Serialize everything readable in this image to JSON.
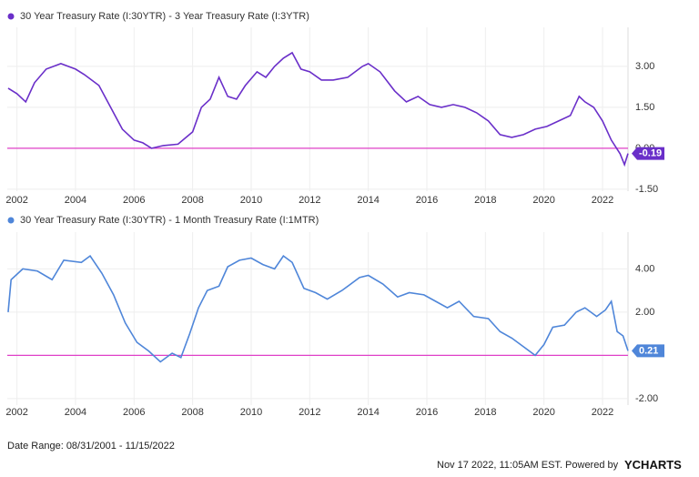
{
  "chart_data": [
    {
      "type": "line",
      "xlim": [
        2001.67,
        2022.87
      ],
      "xticks": [
        2002,
        2004,
        2006,
        2008,
        2010,
        2012,
        2014,
        2016,
        2018,
        2020,
        2022
      ],
      "ylim": [
        -1.57,
        4.43
      ],
      "yticks": [
        {
          "value": -1.5,
          "label": "-1.50"
        },
        {
          "value": 0,
          "label": "0.00"
        },
        {
          "value": 1.5,
          "label": "1.50"
        },
        {
          "value": 3,
          "label": "3.00"
        }
      ],
      "reference_line": 0,
      "reference_color": "#e040c8",
      "grid": true,
      "series": [
        {
          "name": "30 Year Treasury Rate (I:30YTR) - 3 Year Treasury Rate (I:3YTR)",
          "color": "#6a2fc9",
          "x": [
            2001.7,
            2002.0,
            2002.3,
            2002.6,
            2003.0,
            2003.5,
            2004.0,
            2004.3,
            2004.8,
            2005.2,
            2005.6,
            2006.0,
            2006.3,
            2006.6,
            2007.0,
            2007.5,
            2008.0,
            2008.3,
            2008.6,
            2008.9,
            2009.2,
            2009.5,
            2009.8,
            2010.2,
            2010.5,
            2010.8,
            2011.1,
            2011.4,
            2011.7,
            2012.0,
            2012.4,
            2012.8,
            2013.3,
            2013.8,
            2014.0,
            2014.4,
            2014.9,
            2015.3,
            2015.7,
            2016.1,
            2016.5,
            2016.9,
            2017.3,
            2017.7,
            2018.1,
            2018.5,
            2018.9,
            2019.3,
            2019.7,
            2020.1,
            2020.5,
            2020.9,
            2021.2,
            2021.4,
            2021.7,
            2022.0,
            2022.3,
            2022.6,
            2022.75,
            2022.87
          ],
          "values": [
            2.2,
            2.0,
            1.7,
            2.4,
            2.9,
            3.1,
            2.9,
            2.7,
            2.3,
            1.5,
            0.7,
            0.3,
            0.2,
            0.0,
            0.1,
            0.15,
            0.6,
            1.5,
            1.8,
            2.6,
            1.9,
            1.8,
            2.3,
            2.8,
            2.6,
            3.0,
            3.3,
            3.5,
            2.9,
            2.8,
            2.5,
            2.5,
            2.6,
            3.0,
            3.1,
            2.8,
            2.1,
            1.7,
            1.9,
            1.6,
            1.5,
            1.6,
            1.5,
            1.3,
            1.0,
            0.5,
            0.4,
            0.5,
            0.7,
            0.8,
            1.0,
            1.2,
            1.9,
            1.7,
            1.5,
            1.0,
            0.3,
            -0.2,
            -0.6,
            -0.19
          ]
        }
      ]
    },
    {
      "type": "line",
      "xlim": [
        2001.67,
        2022.87
      ],
      "xticks": [
        2002,
        2004,
        2006,
        2008,
        2010,
        2012,
        2014,
        2016,
        2018,
        2020,
        2022
      ],
      "ylim": [
        -2.3,
        5.7
      ],
      "yticks": [
        {
          "value": -2,
          "label": "-2.00"
        },
        {
          "value": 2,
          "label": "2.00"
        },
        {
          "value": 4,
          "label": "4.00"
        }
      ],
      "reference_line": 0,
      "reference_color": "#e040c8",
      "grid": true,
      "series": [
        {
          "name": "30 Year Treasury Rate (I:30YTR) - 1 Month Treasury Rate (I:1MTR)",
          "color": "#4f86d9",
          "x": [
            2001.7,
            2001.8,
            2002.2,
            2002.7,
            2003.2,
            2003.6,
            2004.2,
            2004.5,
            2004.9,
            2005.3,
            2005.7,
            2006.1,
            2006.5,
            2006.9,
            2007.3,
            2007.6,
            2007.9,
            2008.2,
            2008.5,
            2008.9,
            2009.2,
            2009.6,
            2010.0,
            2010.4,
            2010.8,
            2011.1,
            2011.4,
            2011.8,
            2012.2,
            2012.6,
            2013.1,
            2013.7,
            2014.0,
            2014.5,
            2015.0,
            2015.4,
            2015.9,
            2016.3,
            2016.7,
            2017.1,
            2017.6,
            2018.1,
            2018.5,
            2018.9,
            2019.3,
            2019.7,
            2020.0,
            2020.3,
            2020.7,
            2021.1,
            2021.4,
            2021.8,
            2022.1,
            2022.3,
            2022.5,
            2022.7,
            2022.87
          ],
          "values": [
            2.0,
            3.5,
            4.0,
            3.9,
            3.5,
            4.4,
            4.3,
            4.6,
            3.8,
            2.8,
            1.5,
            0.6,
            0.2,
            -0.3,
            0.1,
            -0.1,
            1.0,
            2.2,
            3.0,
            3.2,
            4.1,
            4.4,
            4.5,
            4.2,
            4.0,
            4.6,
            4.3,
            3.1,
            2.9,
            2.6,
            3.0,
            3.6,
            3.7,
            3.3,
            2.7,
            2.9,
            2.8,
            2.5,
            2.2,
            2.5,
            1.8,
            1.7,
            1.1,
            0.8,
            0.4,
            0.0,
            0.5,
            1.3,
            1.4,
            2.0,
            2.2,
            1.8,
            2.1,
            2.5,
            1.1,
            0.9,
            0.21
          ]
        }
      ]
    }
  ],
  "footer": {
    "date_range": "Date Range: 08/31/2001 - 11/15/2022",
    "timestamp": "Nov 17 2022, 11:05AM EST. Powered by",
    "brand": "YCHARTS"
  }
}
